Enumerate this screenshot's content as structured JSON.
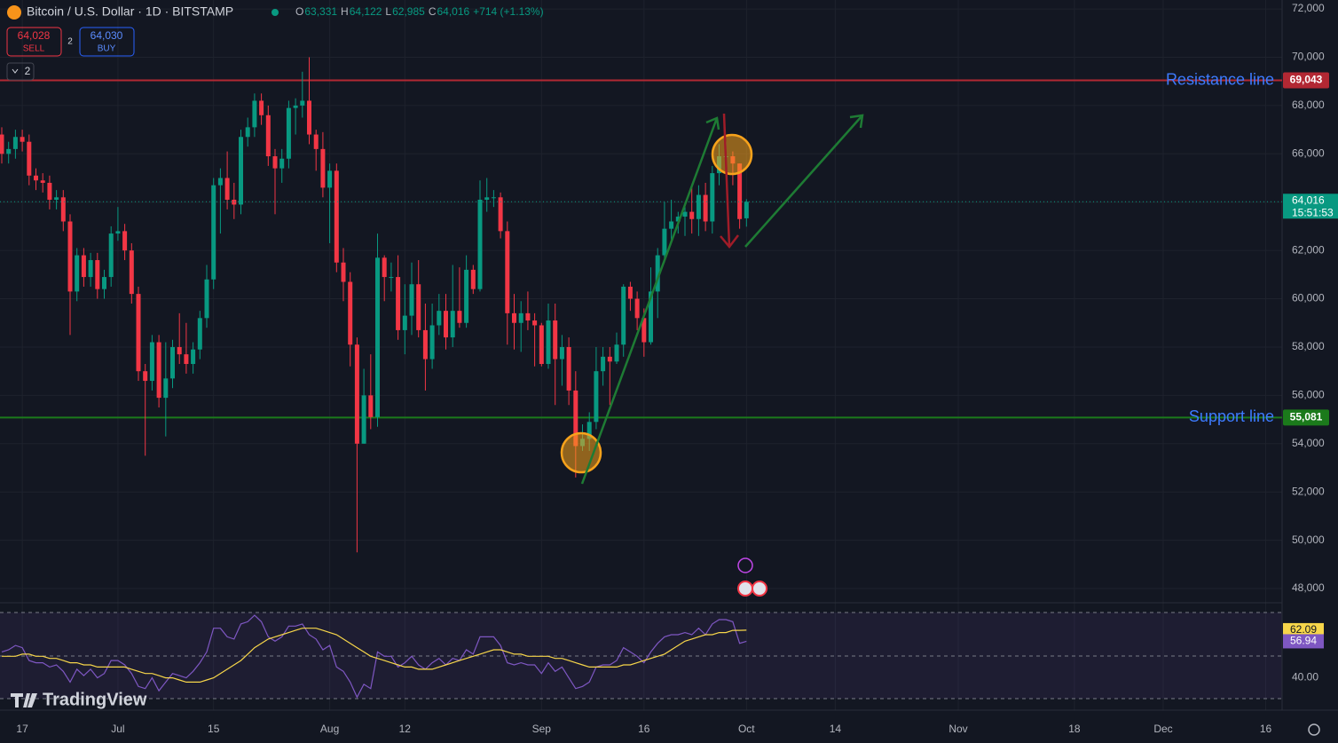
{
  "chart_data": {
    "type": "candlestick",
    "title": "Bitcoin / U.S. Dollar · 1D · BITSTAMP",
    "ohlc_legend": [
      {
        "key": "O",
        "label": "63,331"
      },
      {
        "key": "H",
        "label": "64,122"
      },
      {
        "key": "L",
        "label": "62,985"
      },
      {
        "key": "C",
        "label": "64,016"
      }
    ],
    "change": "+714 (+1.13%)",
    "sell": {
      "price": "64,028",
      "label": "SELL"
    },
    "buy": {
      "price": "64,030",
      "label": "BUY"
    },
    "spread": "2",
    "indicator_count": "2",
    "logo": "TradingView",
    "up_color": "#089981",
    "down_color": "#f23645",
    "open": [
      66800,
      66000,
      66200,
      66700,
      66500,
      65100,
      64900,
      64800,
      64100,
      64200,
      63200,
      60300,
      61800,
      60900,
      61600,
      60400,
      60900,
      62700,
      62800,
      62000,
      60200,
      57000,
      56600,
      58200,
      55900,
      56700,
      58000,
      57700,
      57300,
      57900,
      59200,
      60800,
      64700,
      65000,
      64100,
      63900,
      66700,
      67100,
      68200,
      67600,
      65900,
      65400,
      65800,
      67900,
      68000,
      68200,
      66800,
      66200,
      64600,
      65300,
      61500,
      60700,
      58100,
      54000,
      56000,
      55100,
      61700,
      60900,
      60900,
      58700,
      59300,
      60600,
      58700,
      57500,
      58900,
      59500,
      58400,
      59500,
      59000,
      61200,
      60400,
      64100,
      64200,
      64200,
      62800,
      59400,
      59000,
      59400,
      59100,
      58900,
      57300,
      59100,
      57500,
      58000,
      56200,
      53900,
      54200,
      54900,
      57000,
      57600,
      57400,
      58100,
      60500,
      60000,
      59200,
      58200,
      60300,
      61800,
      62900,
      63200,
      63400,
      63600,
      63300,
      64300,
      63200,
      65200,
      65900,
      65900,
      65600,
      63331
    ],
    "high": [
      67100,
      66500,
      67000,
      67000,
      66800,
      65400,
      65200,
      65100,
      64500,
      64500,
      63500,
      62100,
      62100,
      61900,
      61900,
      61200,
      63000,
      63800,
      63100,
      62300,
      60500,
      57300,
      58500,
      58500,
      58200,
      58300,
      59400,
      59000,
      58200,
      59500,
      61400,
      65000,
      65400,
      66100,
      64800,
      67000,
      67500,
      68500,
      68500,
      68000,
      66200,
      66200,
      68200,
      68300,
      69400,
      70000,
      67000,
      66900,
      65600,
      65600,
      62100,
      61100,
      58400,
      57100,
      57700,
      62700,
      61800,
      61500,
      61800,
      60600,
      61500,
      61600,
      59800,
      59800,
      60200,
      60200,
      61400,
      61300,
      61800,
      61400,
      64900,
      65000,
      64500,
      64400,
      63200,
      60200,
      59900,
      60300,
      59400,
      59000,
      59800,
      59800,
      58500,
      58400,
      57000,
      54800,
      55300,
      58000,
      58000,
      58000,
      58600,
      60600,
      60700,
      60300,
      59600,
      61300,
      62100,
      64000,
      64100,
      63600,
      64000,
      64600,
      64700,
      64800,
      65500,
      66400,
      66500,
      66100,
      65600,
      64122
    ],
    "low": [
      65600,
      65600,
      65800,
      66100,
      64700,
      64500,
      64400,
      63700,
      63700,
      62800,
      58500,
      59900,
      60500,
      60500,
      60000,
      60000,
      60500,
      62400,
      61600,
      59800,
      56600,
      53500,
      56200,
      55500,
      54300,
      56300,
      57300,
      56900,
      56900,
      57500,
      58800,
      60400,
      62700,
      63700,
      63300,
      63500,
      66300,
      66700,
      67200,
      65500,
      63500,
      64800,
      65400,
      66800,
      67500,
      66400,
      65300,
      64200,
      62300,
      61100,
      59900,
      57200,
      49500,
      54000,
      54600,
      54700,
      59900,
      60300,
      58300,
      57700,
      58500,
      58400,
      56200,
      57100,
      58500,
      57900,
      58000,
      58800,
      58800,
      60200,
      60300,
      63600,
      63800,
      62500,
      58100,
      57900,
      57800,
      58700,
      57200,
      57200,
      57100,
      55600,
      56400,
      55600,
      52600,
      53700,
      53700,
      54600,
      56400,
      55600,
      57300,
      57600,
      59500,
      58700,
      57600,
      58100,
      59200,
      61500,
      62400,
      62700,
      62600,
      62700,
      62600,
      62800,
      62700,
      64700,
      65500,
      64700,
      62900,
      62985
    ],
    "close": [
      66000,
      66200,
      66700,
      66500,
      65100,
      64900,
      64800,
      64100,
      64200,
      63200,
      60300,
      61800,
      60900,
      61600,
      60400,
      60900,
      62700,
      62800,
      62000,
      60200,
      57000,
      56600,
      58200,
      55900,
      56700,
      58000,
      57700,
      57300,
      57900,
      59200,
      60800,
      64700,
      65000,
      64100,
      63900,
      66700,
      67100,
      68200,
      67600,
      65900,
      65400,
      65800,
      67900,
      68000,
      68200,
      66800,
      66200,
      64600,
      65300,
      61500,
      60700,
      58100,
      54000,
      56000,
      55100,
      61700,
      60900,
      60900,
      58700,
      59300,
      60600,
      58700,
      57500,
      58900,
      59500,
      58400,
      59500,
      59000,
      61200,
      60400,
      64100,
      64200,
      64200,
      62800,
      59400,
      59000,
      59400,
      59100,
      58900,
      57300,
      59100,
      57500,
      58000,
      56200,
      53900,
      54200,
      54900,
      57000,
      57600,
      57400,
      58100,
      60500,
      60000,
      59200,
      58200,
      60300,
      61800,
      62900,
      63200,
      63400,
      63600,
      63300,
      64300,
      63200,
      65200,
      65900,
      65900,
      65600,
      63300,
      64016
    ],
    "last_price_label": "64,016",
    "countdown": "15:51:53",
    "xlim": [
      -0.26,
      187.4
    ],
    "ylim": [
      47450,
      72370
    ],
    "xticks": [
      {
        "value": 3,
        "label": "17"
      },
      {
        "value": 17,
        "label": "Jul"
      },
      {
        "value": 31,
        "label": "15"
      },
      {
        "value": 48,
        "label": "Aug"
      },
      {
        "value": 59,
        "label": "12"
      },
      {
        "value": 79,
        "label": "Sep"
      },
      {
        "value": 94,
        "label": "16"
      },
      {
        "value": 109,
        "label": "Oct"
      },
      {
        "value": 122,
        "label": "14"
      },
      {
        "value": 140,
        "label": "Nov"
      },
      {
        "value": 157,
        "label": "18"
      },
      {
        "value": 170,
        "label": "Dec"
      },
      {
        "value": 185,
        "label": "16"
      }
    ],
    "yticks": [
      {
        "value": 48000,
        "label": "48,000"
      },
      {
        "value": 50000,
        "label": "50,000"
      },
      {
        "value": 52000,
        "label": "52,000"
      },
      {
        "value": 54000,
        "label": "54,000"
      },
      {
        "value": 56000,
        "label": "56,000"
      },
      {
        "value": 58000,
        "label": "58,000"
      },
      {
        "value": 60000,
        "label": "60,000"
      },
      {
        "value": 62000,
        "label": "62,000"
      },
      {
        "value": 64000,
        "label": "64,000"
      },
      {
        "value": 66000,
        "label": "66,000"
      },
      {
        "value": 68000,
        "label": "68,000"
      },
      {
        "value": 70000,
        "label": "70,000"
      },
      {
        "value": 72000,
        "label": "72,000"
      }
    ],
    "grid": true,
    "lines": [
      {
        "name": "Resistance line",
        "value": 69043,
        "label": "69,043",
        "color": "#b22833"
      },
      {
        "name": "Support line",
        "value": 55081,
        "label": "55,081",
        "color": "#1b7a1b"
      }
    ],
    "rsi": {
      "ylim": [
        25,
        74
      ],
      "yticks": [
        {
          "value": 40,
          "label": "40.00"
        }
      ],
      "series": [
        {
          "color": "#7e57c2",
          "values": [
            52,
            53,
            55,
            54,
            48,
            47,
            47,
            45,
            46,
            43,
            38,
            44,
            41,
            44,
            40,
            42,
            48,
            48,
            46,
            42,
            36,
            35,
            40,
            34,
            38,
            42,
            41,
            40,
            43,
            47,
            52,
            63,
            63,
            59,
            58,
            65,
            66,
            69,
            66,
            59,
            57,
            59,
            64,
            64,
            65,
            60,
            58,
            53,
            55,
            45,
            43,
            38,
            31,
            37,
            35,
            52,
            50,
            50,
            45,
            47,
            50,
            46,
            44,
            47,
            49,
            46,
            49,
            48,
            53,
            51,
            59,
            59,
            59,
            55,
            47,
            46,
            47,
            46,
            46,
            42,
            47,
            43,
            45,
            40,
            35,
            36,
            38,
            45,
            46,
            46,
            48,
            54,
            52,
            50,
            47,
            52,
            56,
            59,
            60,
            60,
            61,
            60,
            63,
            60,
            65,
            67,
            67,
            66,
            56,
            56.94
          ]
        },
        {
          "color": "#f7d64a",
          "values": [
            50,
            50,
            50,
            51,
            51,
            50,
            50,
            49,
            49,
            48,
            47,
            47,
            46,
            46,
            45,
            45,
            45,
            45,
            45,
            44,
            43,
            42,
            42,
            41,
            40,
            40,
            39,
            38,
            38,
            38,
            39,
            40,
            42,
            44,
            46,
            48,
            51,
            54,
            56,
            58,
            59,
            60,
            61,
            62,
            63,
            63,
            63,
            62,
            61,
            60,
            58,
            56,
            54,
            52,
            50,
            49,
            48,
            47,
            46,
            45,
            45,
            44,
            44,
            44,
            45,
            46,
            47,
            48,
            49,
            50,
            51,
            52,
            53,
            53,
            52,
            51,
            51,
            50,
            50,
            50,
            50,
            49,
            49,
            48,
            47,
            46,
            45,
            45,
            45,
            45,
            45,
            46,
            46,
            47,
            48,
            49,
            50,
            51,
            53,
            55,
            57,
            58,
            59,
            60,
            60,
            61,
            61,
            62,
            62,
            62.09
          ]
        }
      ]
    }
  }
}
